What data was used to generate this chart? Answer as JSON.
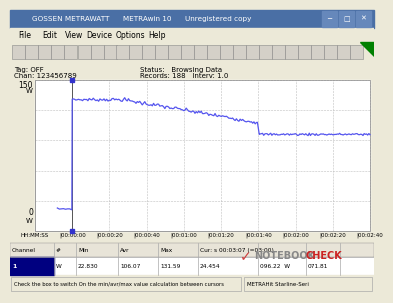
{
  "title_bar": "GOSSEN METRAWATT      METRAwin 10      Unregistered copy",
  "menu_items": [
    "File",
    "Edit",
    "View",
    "Device",
    "Options",
    "Help"
  ],
  "tag_off": "Tag: OFF",
  "chan": "Chan: 123456789",
  "status_text": "Status:   Browsing Data",
  "records_text": "Records: 188   Interv: 1.0",
  "y_top_label": "150",
  "y_top_unit": "W",
  "y_bot_label": "0",
  "y_bot_unit": "W",
  "x_labels": [
    "HH:MM:SS",
    "|00:00:00",
    "|00:00:20",
    "|00:00:40",
    "|00:01:00",
    "|00:01:20",
    "|00:01:40",
    "|00:02:00",
    "|00:02:20",
    "|00:02:40"
  ],
  "grid_color": "#c0c0c0",
  "line_color": "#5555ee",
  "win_bg": "#ece9d8",
  "title_bg": "#0a246a",
  "title_fg": "#ffffff",
  "plot_bg": "#ffffff",
  "table_bg": "#ffffff",
  "col_headers": [
    "Channel",
    "#",
    "Min",
    "Avr",
    "Max",
    "Cur: s 00:03:07 (=03:00)",
    "",
    ""
  ],
  "row1": [
    "1",
    "W",
    "22.830",
    "106.07",
    "131.59",
    "24.454",
    "096.22  W",
    "071.81"
  ],
  "status_bar_left": "Check the box to switch On the min/avr/max value calculation between cursors",
  "status_bar_right": "METRAHit Starline-Seri",
  "peak_watts": 131,
  "stable_watts": 96,
  "initial_watts": 22,
  "drop_time_s": 100,
  "total_duration_s": 160
}
